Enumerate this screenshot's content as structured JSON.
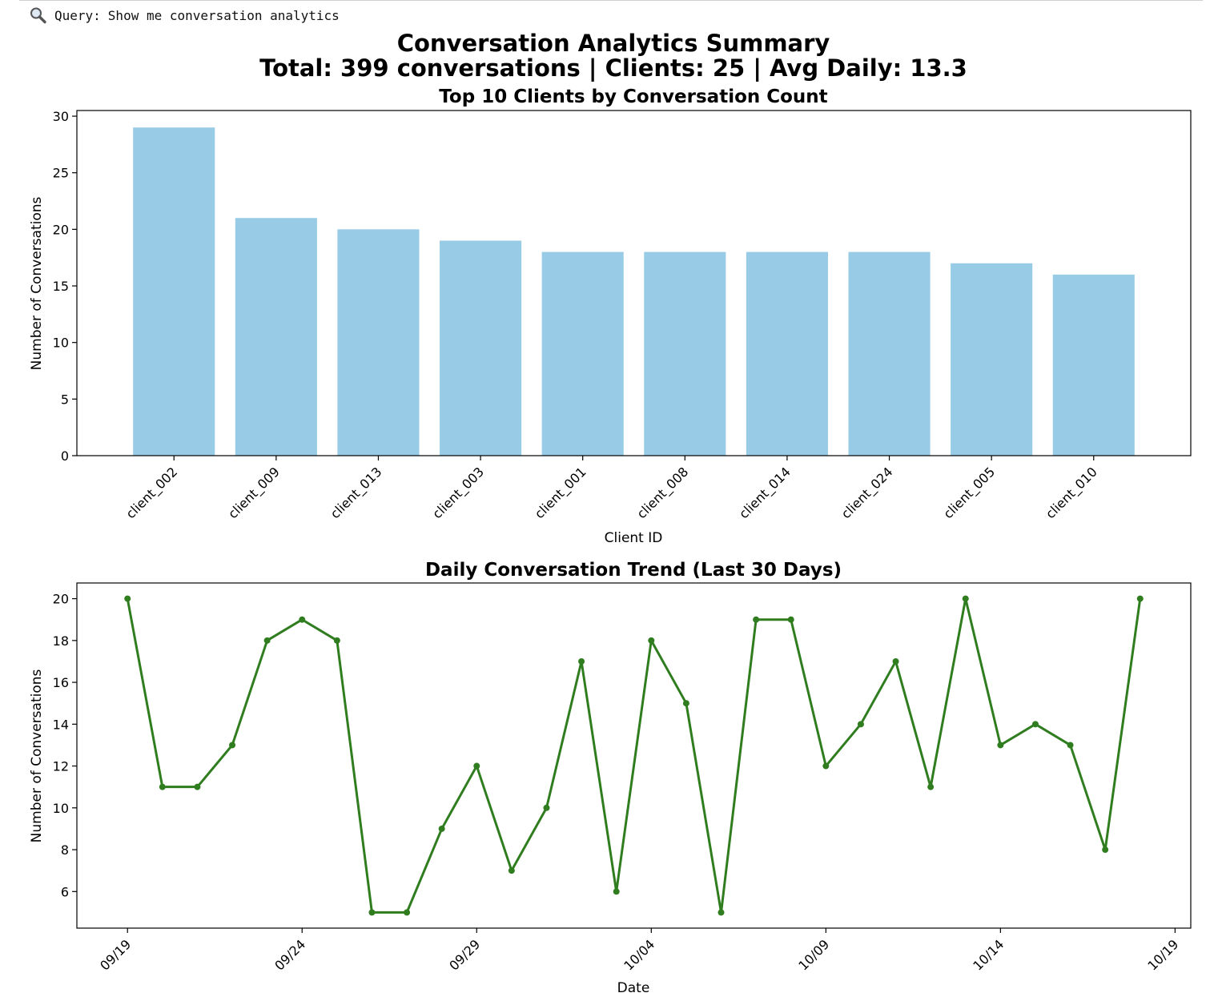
{
  "query": {
    "label": "Query:",
    "text": "Show me conversation analytics",
    "icon": "magnifier-icon"
  },
  "figure": {
    "title_line1": "Conversation Analytics Summary",
    "title_line2": "Total: 399 conversations | Clients: 25 | Avg Daily: 13.3"
  },
  "chart_data": [
    {
      "type": "bar",
      "title": "Top 10 Clients by Conversation Count",
      "xlabel": "Client ID",
      "ylabel": "Number of Conversations",
      "categories": [
        "client_002",
        "client_009",
        "client_013",
        "client_003",
        "client_001",
        "client_008",
        "client_014",
        "client_024",
        "client_005",
        "client_010"
      ],
      "values": [
        29,
        21,
        20,
        19,
        18,
        18,
        18,
        18,
        17,
        16
      ],
      "ylim": [
        0,
        30.5
      ],
      "yticks": [
        0,
        5,
        10,
        15,
        20,
        25,
        30
      ],
      "color": "#97cbe6",
      "grid": false
    },
    {
      "type": "line",
      "title": "Daily Conversation Trend (Last 30 Days)",
      "xlabel": "Date",
      "ylabel": "Number of Conversations",
      "x": [
        "09/19",
        "09/20",
        "09/21",
        "09/22",
        "09/23",
        "09/24",
        "09/25",
        "09/26",
        "09/27",
        "09/28",
        "09/29",
        "09/30",
        "10/01",
        "10/02",
        "10/03",
        "10/04",
        "10/05",
        "10/06",
        "10/07",
        "10/08",
        "10/09",
        "10/10",
        "10/11",
        "10/12",
        "10/13",
        "10/14",
        "10/15",
        "10/16",
        "10/17",
        "10/18"
      ],
      "values": [
        20,
        11,
        11,
        13,
        18,
        19,
        18,
        5,
        5,
        9,
        12,
        7,
        10,
        17,
        6,
        18,
        15,
        5,
        19,
        19,
        12,
        14,
        17,
        11,
        20,
        13,
        14,
        13,
        8,
        20
      ],
      "xticks": [
        "09/19",
        "09/24",
        "09/29",
        "10/04",
        "10/09",
        "10/14",
        "10/19"
      ],
      "yticks": [
        6,
        8,
        10,
        12,
        14,
        16,
        18,
        20
      ],
      "ylim": [
        4.25,
        20.75
      ],
      "color": "#2f7d1f",
      "marker": "circle",
      "grid": false
    }
  ]
}
